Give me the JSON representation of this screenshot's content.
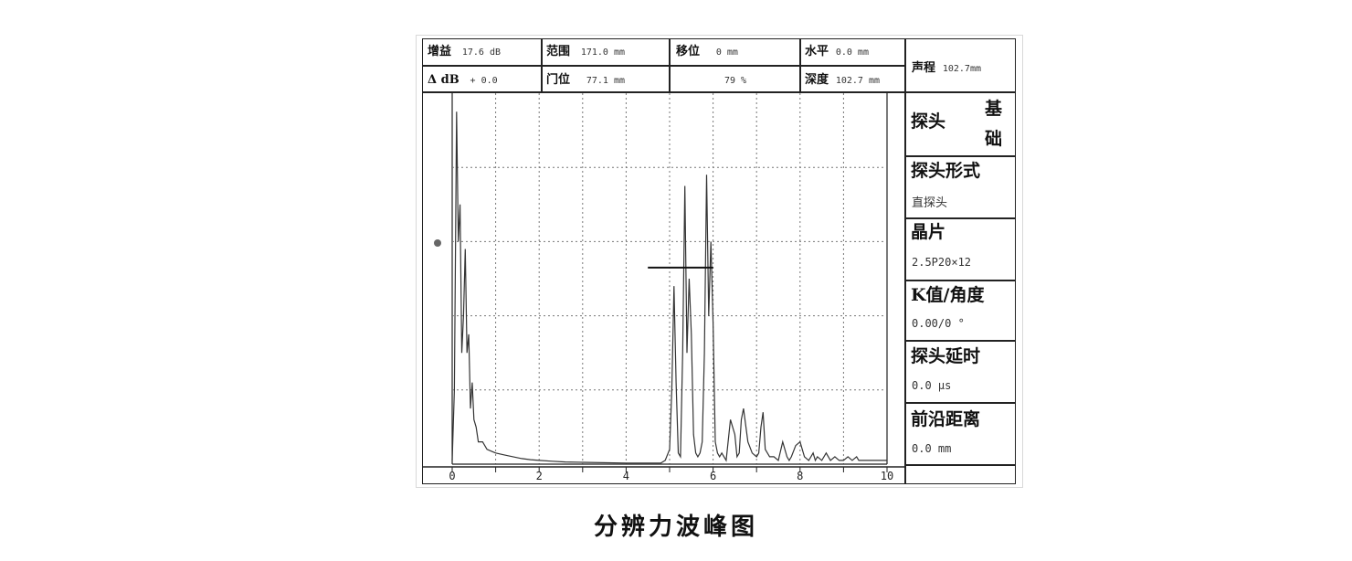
{
  "header": {
    "gain_label": "增益",
    "gain_value": "17.6 dB",
    "range_label": "范围",
    "range_value": "171.0 mm",
    "shift_label": "移位",
    "shift_value": "0 mm",
    "horizontal_label": "水平",
    "horizontal_value": "0.0 mm",
    "delta_db_label": "Δ dB",
    "delta_db_value": "+ 0.0",
    "gate_label": "门位",
    "gate_value": "77.1 mm",
    "amplitude_value": "79 %",
    "depth_label": "深度",
    "depth_value": "102.7 mm",
    "sound_path_label": "声程",
    "sound_path_value": "102.7mm"
  },
  "panel": {
    "probe_label": "探头",
    "probe_value_1": "基",
    "probe_value_2": "础",
    "probe_type_label": "探头形式",
    "probe_type_value": "直探头",
    "crystal_label": "晶片",
    "crystal_value": "2.5P20×12",
    "k_label": "K值/角度",
    "k_value": "0.00/0 °",
    "delay_label": "探头延时",
    "delay_value": "0.0 μs",
    "front_label": "前沿距离",
    "front_value": "0.0 mm"
  },
  "chart_data": {
    "type": "line",
    "x_ticks": [
      "0",
      "2",
      "4",
      "6",
      "8",
      "10"
    ],
    "xlim": [
      0,
      10
    ],
    "ylim": [
      0,
      100
    ],
    "grid": true,
    "gate": {
      "x_start": 4.5,
      "x_end": 6.0,
      "level": 53
    },
    "x": [
      0.0,
      0.05,
      0.1,
      0.14,
      0.18,
      0.22,
      0.26,
      0.3,
      0.34,
      0.38,
      0.42,
      0.46,
      0.5,
      0.55,
      0.6,
      0.7,
      0.8,
      0.9,
      1.0,
      1.2,
      1.4,
      1.6,
      1.8,
      2.0,
      2.3,
      2.6,
      3.0,
      4.0,
      4.8,
      4.9,
      5.0,
      5.05,
      5.1,
      5.15,
      5.2,
      5.25,
      5.3,
      5.35,
      5.4,
      5.45,
      5.5,
      5.55,
      5.6,
      5.65,
      5.7,
      5.75,
      5.8,
      5.85,
      5.9,
      5.95,
      6.0,
      6.05,
      6.1,
      6.15,
      6.2,
      6.3,
      6.4,
      6.5,
      6.55,
      6.6,
      6.65,
      6.7,
      6.8,
      6.9,
      7.0,
      7.05,
      7.1,
      7.15,
      7.2,
      7.3,
      7.4,
      7.5,
      7.6,
      7.7,
      7.75,
      7.8,
      7.9,
      8.0,
      8.1,
      8.2,
      8.25,
      8.3,
      8.35,
      8.4,
      8.5,
      8.6,
      8.7,
      8.8,
      8.9,
      9.0,
      9.1,
      9.2,
      9.3,
      9.35,
      9.4,
      9.5,
      9.6,
      9.8,
      10.0
    ],
    "y": [
      1,
      20,
      95,
      60,
      70,
      30,
      40,
      58,
      30,
      35,
      15,
      22,
      12,
      10,
      6,
      6,
      4,
      3.5,
      3,
      2.5,
      2,
      1.5,
      1.2,
      1,
      0.8,
      0.6,
      0.5,
      0.3,
      0.3,
      1,
      4,
      20,
      48,
      22,
      3,
      2,
      30,
      75,
      30,
      50,
      35,
      8,
      3,
      2,
      3,
      6,
      30,
      78,
      40,
      60,
      38,
      6,
      3,
      2,
      3,
      1,
      12,
      8,
      2,
      3,
      12,
      15,
      6,
      3,
      2,
      3,
      10,
      14,
      4,
      2,
      2,
      1,
      6,
      2,
      1,
      2,
      5,
      6,
      2,
      1,
      2,
      3,
      1,
      2,
      1,
      3,
      1,
      2,
      1,
      1,
      2,
      1,
      2,
      1,
      1,
      1,
      1,
      1,
      1
    ]
  },
  "caption": "分辨力波峰图"
}
